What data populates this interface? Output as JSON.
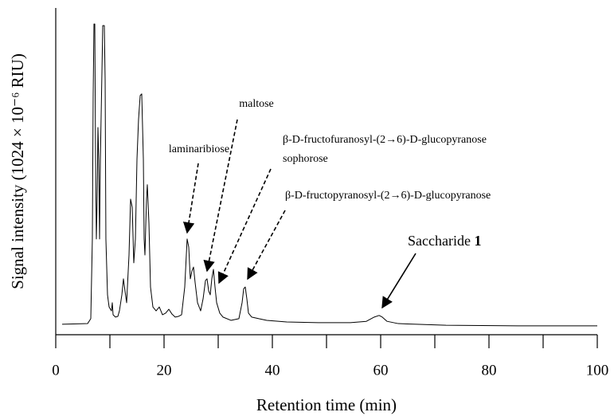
{
  "chart_data": {
    "type": "line",
    "x_label": "Retention time (min)",
    "y_label": "Signal intensity (1024 × 10⁻⁶ RIU)",
    "annotations": {
      "laminaribiose": "laminaribiose",
      "maltose": "maltose",
      "fructofuranosyl": "β-D-fructofuranosyl-(2→6)-D-glucopyranose",
      "sophorose": "sophorose",
      "fructopyranosyl": "β-D-fructopyranosyl-(2→6)-D-glucopyranose",
      "saccharide": "Saccharide",
      "saccharide_number": "1"
    },
    "xlim": [
      0,
      100
    ],
    "xticks": [
      0,
      20,
      40,
      60,
      80,
      100
    ],
    "xticks_minor": [
      10,
      30,
      50,
      70,
      90
    ],
    "ylim": [
      0,
      100
    ],
    "series": [
      {
        "color": "#000000",
        "x": [
          1.18,
          5.88,
          6.47,
          6.76,
          6.91,
          7.06,
          7.21,
          7.35,
          7.5,
          7.65,
          7.79,
          7.94,
          8.09,
          8.24,
          8.53,
          8.68,
          8.97,
          9.12,
          9.26,
          9.56,
          9.85,
          10.29,
          10.44,
          10.59,
          11.03,
          11.47,
          11.76,
          12.21,
          12.5,
          12.79,
          13.09,
          13.53,
          13.82,
          14.12,
          14.41,
          14.71,
          15,
          15.29,
          15.59,
          15.88,
          16.18,
          16.32,
          16.47,
          16.76,
          16.91,
          17.21,
          17.5,
          17.94,
          18.53,
          19.12,
          19.71,
          20.29,
          20.88,
          21.47,
          22.06,
          22.65,
          23.24,
          23.82,
          24.26,
          24.56,
          24.85,
          25.15,
          25.44,
          25.74,
          26.18,
          26.76,
          27.21,
          27.65,
          27.94,
          28.24,
          28.53,
          28.82,
          29.12,
          29.41,
          29.71,
          30.29,
          30.88,
          32.35,
          33.82,
          34.41,
          34.71,
          35,
          35.29,
          35.59,
          36.18,
          37.5,
          38.97,
          42.65,
          48.53,
          54.41,
          57.35,
          58.82,
          59.71,
          60.29,
          61.18,
          63.24,
          72.06,
          85.29,
          100
        ],
        "values": [
          3.2,
          3.4,
          4.9,
          29.3,
          73.2,
          95.1,
          95.1,
          53.7,
          29.3,
          41.5,
          63.4,
          53.7,
          29.3,
          53.7,
          80.5,
          94.6,
          94.6,
          78,
          29.3,
          12.2,
          8.5,
          7.3,
          9.8,
          6.1,
          5.4,
          5.6,
          7.3,
          12.2,
          17.1,
          13.4,
          9.8,
          24.4,
          41.5,
          39,
          22,
          29.3,
          53.7,
          65.9,
          73.2,
          73.7,
          53.7,
          29.3,
          24.4,
          41.5,
          45.9,
          34.1,
          14.6,
          8.5,
          7.3,
          8.5,
          6.1,
          6.6,
          7.8,
          6.3,
          5.4,
          5.6,
          6.1,
          14.6,
          29.3,
          26.8,
          17.1,
          19.5,
          20.7,
          15.9,
          9.8,
          7.3,
          11,
          16.6,
          17.1,
          13.4,
          12.2,
          17.1,
          20,
          14.6,
          9.8,
          6.6,
          5.4,
          4.4,
          4.9,
          9.8,
          14.1,
          14.6,
          11,
          6.6,
          5.4,
          4.9,
          4.4,
          3.9,
          3.7,
          3.7,
          4.1,
          5.4,
          5.9,
          5.4,
          4.1,
          3.4,
          2.9,
          2.7,
          2.7
        ]
      }
    ]
  }
}
